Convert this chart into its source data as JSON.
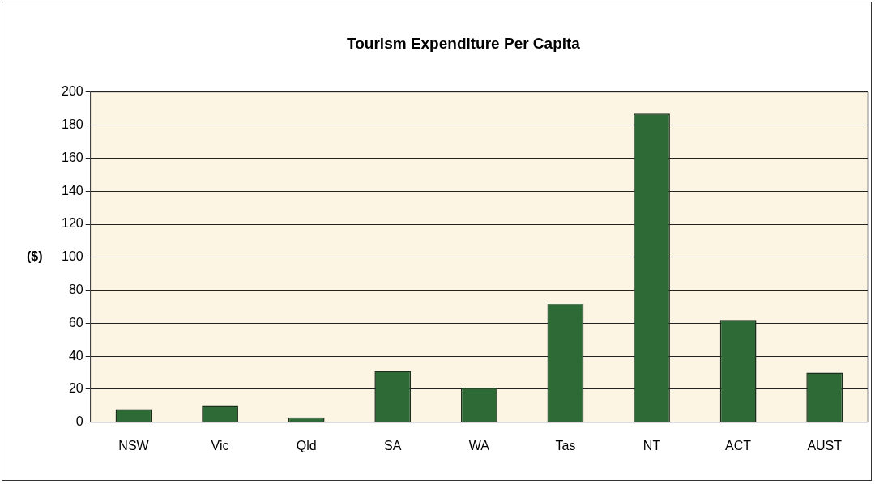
{
  "chart_data": {
    "type": "bar",
    "title": "Tourism Expenditure Per Capita",
    "ylabel": "($)",
    "categories": [
      "NSW",
      "Vic",
      "Qld",
      "SA",
      "WA",
      "Tas",
      "NT",
      "ACT",
      "AUST"
    ],
    "values": [
      8,
      10,
      3,
      31,
      21,
      72,
      187,
      62,
      30
    ],
    "color": "#2e6a36",
    "ylim": [
      0,
      200
    ],
    "yticks": [
      0,
      20,
      40,
      60,
      80,
      100,
      120,
      140,
      160,
      180,
      200
    ],
    "grid": "y",
    "legend": false
  }
}
